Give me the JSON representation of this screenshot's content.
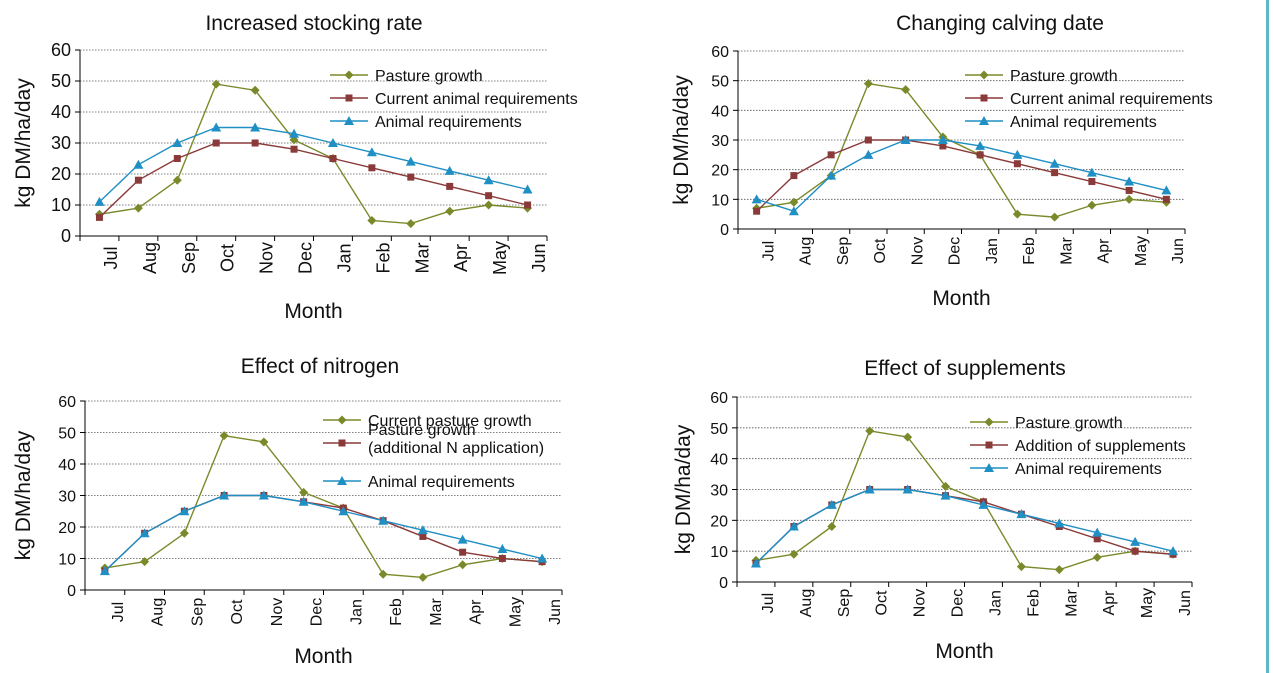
{
  "colors": {
    "pasture": "#7a8a2a",
    "current": "#8b3a3a",
    "animal": "#1f8fc4",
    "axis": "#000000",
    "grid": "#555555",
    "right_rule": "#5bb8c4"
  },
  "chart_data": [
    {
      "type": "line",
      "title": "Increased stocking rate",
      "xlabel": "Month",
      "ylabel": "kg DM/ha/day",
      "categories": [
        "Jul",
        "Aug",
        "Sep",
        "Oct",
        "Nov",
        "Dec",
        "Jan",
        "Feb",
        "Mar",
        "Apr",
        "May",
        "Jun"
      ],
      "ylim": [
        0,
        60
      ],
      "yticks": [
        "0",
        "10",
        "20",
        "30",
        "40",
        "50",
        "60"
      ],
      "grid": "horizontal dotted",
      "legend_position": "top-right",
      "series": [
        {
          "name": "Pasture growth",
          "marker": "diamond",
          "color_key": "pasture",
          "values": [
            7,
            9,
            18,
            49,
            47,
            31,
            25,
            5,
            4,
            8,
            10,
            9
          ]
        },
        {
          "name": "Current animal requirements",
          "marker": "square",
          "color_key": "current",
          "values": [
            6,
            18,
            25,
            30,
            30,
            28,
            25,
            22,
            19,
            16,
            13,
            10
          ]
        },
        {
          "name": "Animal requirements",
          "marker": "triangle",
          "color_key": "animal",
          "values": [
            11,
            23,
            30,
            35,
            35,
            33,
            30,
            27,
            24,
            21,
            18,
            15
          ]
        }
      ]
    },
    {
      "type": "line",
      "title": "Changing calving date",
      "xlabel": "Month",
      "ylabel": "kg DM/ha/day",
      "categories": [
        "Jul",
        "Aug",
        "Sep",
        "Oct",
        "Nov",
        "Dec",
        "Jan",
        "Feb",
        "Mar",
        "Apr",
        "May",
        "Jun"
      ],
      "ylim": [
        0,
        60
      ],
      "yticks": [
        "0",
        "10",
        "20",
        "30",
        "40",
        "50",
        "60"
      ],
      "grid": "horizontal dotted",
      "legend_position": "top-right",
      "series": [
        {
          "name": "Pasture growth",
          "marker": "diamond",
          "color_key": "pasture",
          "values": [
            7,
            9,
            18,
            49,
            47,
            31,
            25,
            5,
            4,
            8,
            10,
            9
          ]
        },
        {
          "name": "Current animal requirements",
          "marker": "square",
          "color_key": "current",
          "values": [
            6,
            18,
            25,
            30,
            30,
            28,
            25,
            22,
            19,
            16,
            13,
            10
          ]
        },
        {
          "name": "Animal requirements",
          "marker": "triangle",
          "color_key": "animal",
          "values": [
            10,
            6,
            18,
            25,
            30,
            30,
            28,
            25,
            22,
            19,
            16,
            13
          ]
        }
      ]
    },
    {
      "type": "line",
      "title": "Effect of nitrogen",
      "xlabel": "Month",
      "ylabel": "kg DM/ha/day",
      "categories": [
        "Jul",
        "Aug",
        "Sep",
        "Oct",
        "Nov",
        "Dec",
        "Jan",
        "Feb",
        "Mar",
        "Apr",
        "May",
        "Jun"
      ],
      "ylim": [
        0,
        60
      ],
      "yticks": [
        "0",
        "10",
        "20",
        "30",
        "40",
        "50",
        "60"
      ],
      "grid": "horizontal dotted",
      "legend_position": "top-right",
      "series": [
        {
          "name": "Current pasture growth",
          "marker": "diamond",
          "color_key": "pasture",
          "values": [
            7,
            9,
            18,
            49,
            47,
            31,
            26,
            5,
            4,
            8,
            10,
            9
          ]
        },
        {
          "name": "Pasture growth (additional N application)",
          "name_lines": [
            "Pasture growth",
            "(additional N application)"
          ],
          "marker": "square",
          "color_key": "current",
          "values": [
            6,
            18,
            25,
            30,
            30,
            28,
            26,
            22,
            17,
            12,
            10,
            9
          ]
        },
        {
          "name": "Animal requirements",
          "marker": "triangle",
          "color_key": "animal",
          "values": [
            6,
            18,
            25,
            30,
            30,
            28,
            25,
            22,
            19,
            16,
            13,
            10
          ]
        }
      ]
    },
    {
      "type": "line",
      "title": "Effect of supplements",
      "xlabel": "Month",
      "ylabel": "kg DM/ha/day",
      "categories": [
        "Jul",
        "Aug",
        "Sep",
        "Oct",
        "Nov",
        "Dec",
        "Jan",
        "Feb",
        "Mar",
        "Apr",
        "May",
        "Jun"
      ],
      "ylim": [
        0,
        60
      ],
      "yticks": [
        "0",
        "10",
        "20",
        "30",
        "40",
        "50",
        "60"
      ],
      "grid": "horizontal dotted",
      "legend_position": "top-right",
      "series": [
        {
          "name": "Pasture growth",
          "marker": "diamond",
          "color_key": "pasture",
          "values": [
            7,
            9,
            18,
            49,
            47,
            31,
            26,
            5,
            4,
            8,
            10,
            9
          ]
        },
        {
          "name": "Addition of supplements",
          "marker": "square",
          "color_key": "current",
          "values": [
            6,
            18,
            25,
            30,
            30,
            28,
            26,
            22,
            18,
            14,
            10,
            9
          ]
        },
        {
          "name": "Animal requirements",
          "marker": "triangle",
          "color_key": "animal",
          "values": [
            6,
            18,
            25,
            30,
            30,
            28,
            25,
            22,
            19,
            16,
            13,
            10
          ]
        }
      ]
    }
  ]
}
